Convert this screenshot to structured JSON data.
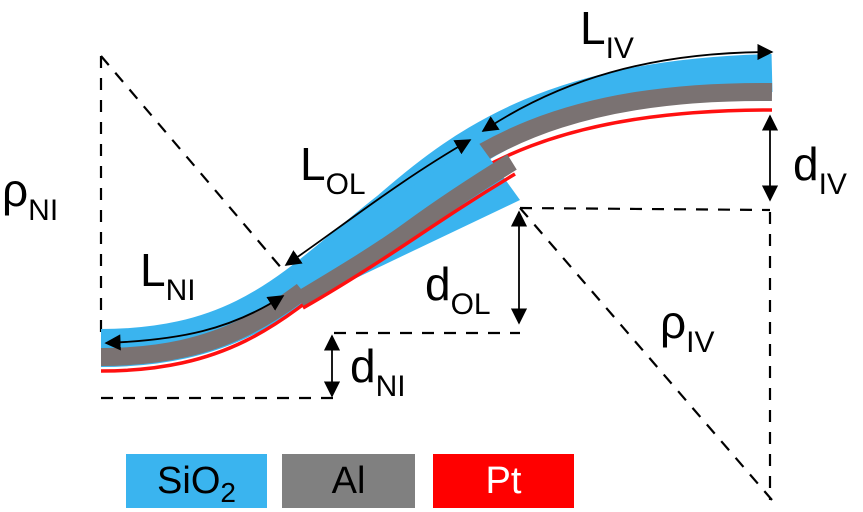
{
  "labels": {
    "rho_ni": {
      "main": "ρ",
      "sub": "NI"
    },
    "rho_iv": {
      "main": "ρ",
      "sub": "IV"
    },
    "l_ni": {
      "main": "L",
      "sub": "NI"
    },
    "l_ol": {
      "main": "L",
      "sub": "OL"
    },
    "l_iv": {
      "main": "L",
      "sub": "IV"
    },
    "d_ni": {
      "main": "d",
      "sub": "NI"
    },
    "d_ol": {
      "main": "d",
      "sub": "OL"
    },
    "d_iv": {
      "main": "d",
      "sub": "IV"
    }
  },
  "legend": [
    {
      "main": "SiO",
      "sub": "2",
      "color": "#3ab4ef",
      "text_color": "#000000"
    },
    {
      "main": "Al",
      "sub": "",
      "color": "#808080",
      "text_color": "#000000"
    },
    {
      "main": "Pt",
      "sub": "",
      "color": "#ff0000",
      "text_color": "#ffffff"
    }
  ],
  "colors": {
    "sio2": "#3ab4ef",
    "al": "#7a7272",
    "pt": "#ff1010"
  }
}
